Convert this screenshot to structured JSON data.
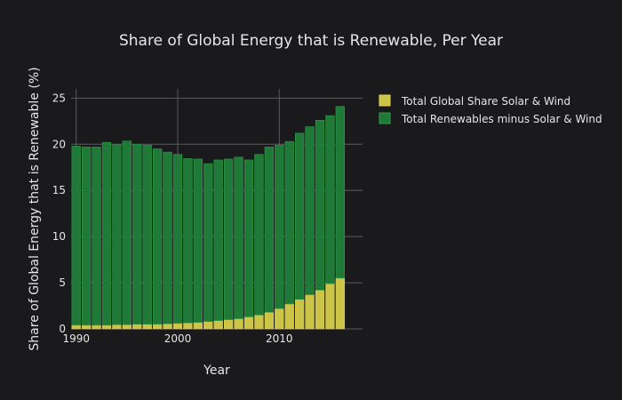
{
  "chart_data": {
    "type": "bar",
    "barmode": "stack",
    "title": "Share of Global Energy that is Renewable, Per Year",
    "xlabel": "Year",
    "ylabel": "Share of Global Energy that is Renewable (%)",
    "xlim": [
      1989.5,
      2018.2
    ],
    "ylim": [
      0,
      26
    ],
    "x_ticks": [
      1990,
      2000,
      2010
    ],
    "y_ticks": [
      0,
      5,
      10,
      15,
      20,
      25
    ],
    "grid": true,
    "legend_position": "top-right",
    "x": [
      1990,
      1991,
      1992,
      1993,
      1994,
      1995,
      1996,
      1997,
      1998,
      1999,
      2000,
      2001,
      2002,
      2003,
      2004,
      2005,
      2006,
      2007,
      2008,
      2009,
      2010,
      2011,
      2012,
      2013,
      2014,
      2015,
      2016
    ],
    "series": [
      {
        "name": "Total Global Share Solar & Wind",
        "color": "#cbc447",
        "values": [
          0.4,
          0.4,
          0.4,
          0.4,
          0.45,
          0.45,
          0.5,
          0.5,
          0.5,
          0.55,
          0.6,
          0.65,
          0.7,
          0.8,
          0.9,
          1.0,
          1.1,
          1.3,
          1.5,
          1.8,
          2.2,
          2.7,
          3.2,
          3.7,
          4.2,
          4.9,
          5.5
        ]
      },
      {
        "name": "Total Renewables minus Solar & Wind",
        "color": "#1e7a36",
        "values": [
          19.4,
          19.3,
          19.3,
          19.8,
          19.5,
          19.9,
          19.5,
          19.4,
          19.0,
          18.6,
          18.3,
          17.8,
          17.7,
          17.1,
          17.4,
          17.4,
          17.5,
          17.0,
          17.4,
          17.9,
          17.7,
          17.6,
          18.0,
          18.2,
          18.4,
          18.2,
          18.6
        ]
      }
    ]
  }
}
